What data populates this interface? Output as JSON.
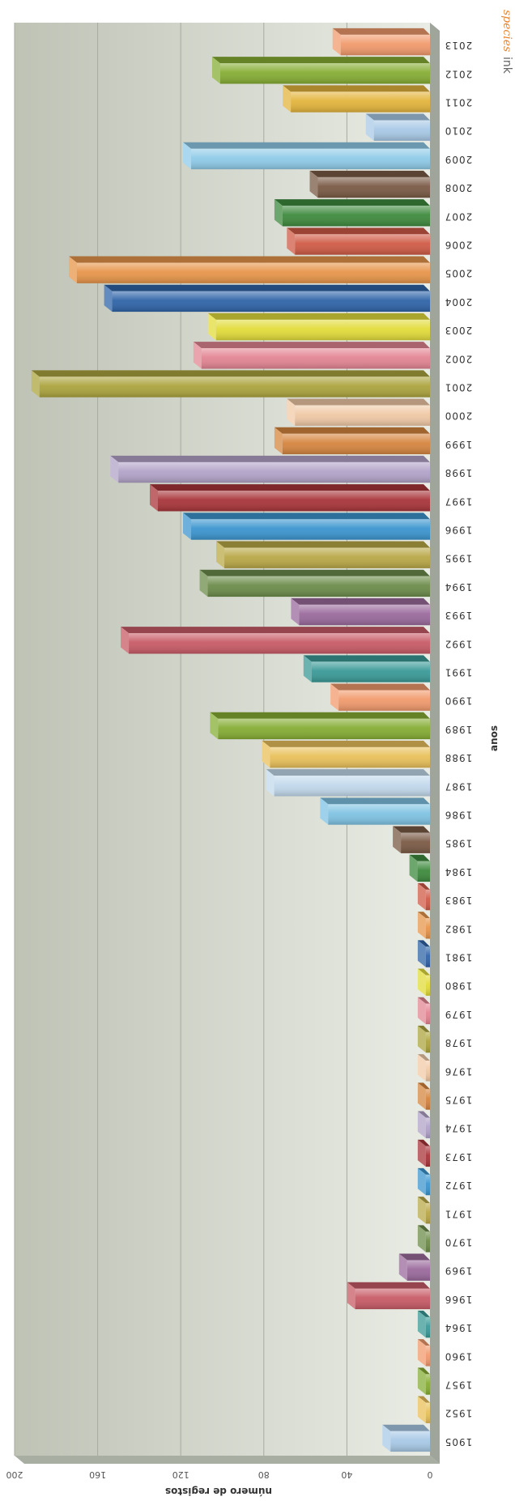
{
  "chart_data": {
    "type": "bar",
    "orientation": "horizontal-3d",
    "xlabel": "anos",
    "ylabel": "número de registos",
    "ylim": [
      0,
      200
    ],
    "y_ticks": [
      "0",
      "40",
      "80",
      "120",
      "160",
      "200"
    ],
    "grid": true,
    "categories": [
      "2013",
      "2012",
      "2011",
      "2010",
      "2009",
      "2008",
      "2007",
      "2006",
      "2005",
      "2004",
      "2003",
      "2002",
      "2001",
      "2000",
      "1999",
      "1998",
      "1997",
      "1996",
      "1995",
      "1994",
      "1993",
      "1992",
      "1991",
      "1990",
      "1989",
      "1988",
      "1987",
      "1986",
      "1985",
      "1984",
      "1983",
      "1982",
      "1981",
      "1980",
      "1979",
      "1978",
      "1976",
      "1975",
      "1974",
      "1973",
      "1972",
      "1971",
      "1970",
      "1969",
      "1966",
      "1964",
      "1960",
      "1957",
      "1952",
      "1905"
    ],
    "values": [
      43,
      101,
      67,
      27,
      115,
      54,
      71,
      65,
      170,
      153,
      103,
      110,
      188,
      65,
      71,
      150,
      131,
      115,
      99,
      107,
      63,
      145,
      57,
      44,
      102,
      77,
      75,
      49,
      14,
      6,
      2,
      2,
      2,
      2,
      2,
      2,
      2,
      2,
      2,
      2,
      2,
      2,
      2,
      11,
      36,
      2,
      2,
      2,
      2,
      19
    ],
    "colors": [
      "#f19a6c",
      "#86ad34",
      "#e3b43c",
      "#a8c9e6",
      "#8fcbe8",
      "#7a5a45",
      "#3e8a3e",
      "#cf5b46",
      "#e7954a",
      "#2f64a8",
      "#e2dc3a",
      "#e38593",
      "#aca43e",
      "#f0c9a6",
      "#d5853f",
      "#b2a3c8",
      "#a8353a",
      "#3b95cf",
      "#b9a847",
      "#6c8c4a",
      "#9a6a9c",
      "#c85b66",
      "#3a9a97",
      "#f19a6c",
      "#86ad34",
      "#e9c05a",
      "#c2d9ec",
      "#7fc3e3",
      "#7a5a45",
      "#3e8a3e",
      "#cf5b46",
      "#e7954a",
      "#2f64a8",
      "#e2dc3a",
      "#e38593",
      "#aca43e",
      "#f0c9a6",
      "#d5853f",
      "#b2a3c8",
      "#a8353a",
      "#3b95cf",
      "#b9a847",
      "#6c8c4a",
      "#9a6a9c",
      "#c85b66",
      "#3a9a97",
      "#f19a6c",
      "#86ad34",
      "#e9c05a",
      "#a8c9e6"
    ]
  },
  "branding": {
    "logo_italic": "species",
    "logo_plain": "ink"
  }
}
